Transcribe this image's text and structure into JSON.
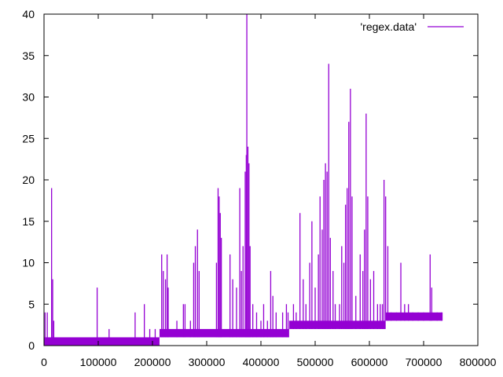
{
  "chart_data": {
    "type": "line",
    "title": "",
    "xlabel": "",
    "ylabel": "",
    "xlim": [
      0,
      800000
    ],
    "ylim": [
      0,
      40
    ],
    "x_ticks": [
      0,
      100000,
      200000,
      300000,
      400000,
      500000,
      600000,
      700000,
      800000
    ],
    "y_ticks": [
      0,
      5,
      10,
      15,
      20,
      25,
      30,
      35,
      40
    ],
    "x_tick_labels": [
      "0",
      "100000",
      "200000",
      "300000",
      "400000",
      "500000",
      "600000",
      "700000",
      "800000"
    ],
    "y_tick_labels": [
      "0",
      "5",
      "10",
      "15",
      "20",
      "25",
      "30",
      "35",
      "40"
    ],
    "grid": false,
    "legend_position": "top-right",
    "series": [
      {
        "name": "'regex.data'",
        "color": "#9400d3",
        "bands": [
          {
            "x_start": 0,
            "x_end": 213000,
            "low": 0,
            "high": 1
          },
          {
            "x_start": 213000,
            "x_end": 452000,
            "low": 1,
            "high": 2
          },
          {
            "x_start": 452000,
            "x_end": 630000,
            "low": 2,
            "high": 3
          },
          {
            "x_start": 630000,
            "x_end": 735000,
            "low": 3,
            "high": 4
          }
        ],
        "spikes": [
          [
            2000,
            4
          ],
          [
            6000,
            4
          ],
          [
            14000,
            19
          ],
          [
            16000,
            8
          ],
          [
            18000,
            3
          ],
          [
            98000,
            7
          ],
          [
            120000,
            2
          ],
          [
            168000,
            4
          ],
          [
            185000,
            5
          ],
          [
            195000,
            2
          ],
          [
            205000,
            2
          ],
          [
            217000,
            11
          ],
          [
            220000,
            9
          ],
          [
            224000,
            8
          ],
          [
            227000,
            11
          ],
          [
            229000,
            7
          ],
          [
            245000,
            3
          ],
          [
            257000,
            5
          ],
          [
            260000,
            5
          ],
          [
            270000,
            3
          ],
          [
            276000,
            10
          ],
          [
            279000,
            12
          ],
          [
            283000,
            14
          ],
          [
            286000,
            9
          ],
          [
            318000,
            10
          ],
          [
            321000,
            19
          ],
          [
            323000,
            18
          ],
          [
            325000,
            16
          ],
          [
            327000,
            13
          ],
          [
            343000,
            11
          ],
          [
            348000,
            8
          ],
          [
            355000,
            7
          ],
          [
            361000,
            19
          ],
          [
            364000,
            9
          ],
          [
            367000,
            12
          ],
          [
            371000,
            21
          ],
          [
            373000,
            23
          ],
          [
            374000,
            40
          ],
          [
            376000,
            24
          ],
          [
            378000,
            22
          ],
          [
            380000,
            12
          ],
          [
            385000,
            5
          ],
          [
            392000,
            4
          ],
          [
            400000,
            3
          ],
          [
            405000,
            5
          ],
          [
            412000,
            3
          ],
          [
            418000,
            9
          ],
          [
            422000,
            6
          ],
          [
            428000,
            4
          ],
          [
            440000,
            4
          ],
          [
            447000,
            5
          ],
          [
            450000,
            4
          ],
          [
            460000,
            5
          ],
          [
            465000,
            4
          ],
          [
            472000,
            16
          ],
          [
            478000,
            8
          ],
          [
            483000,
            5
          ],
          [
            490000,
            10
          ],
          [
            494000,
            15
          ],
          [
            500000,
            7
          ],
          [
            506000,
            11
          ],
          [
            509000,
            18
          ],
          [
            513000,
            14
          ],
          [
            516000,
            20
          ],
          [
            519000,
            22
          ],
          [
            522000,
            21
          ],
          [
            525000,
            34
          ],
          [
            528000,
            13
          ],
          [
            533000,
            9
          ],
          [
            537000,
            5
          ],
          [
            545000,
            5
          ],
          [
            549000,
            12
          ],
          [
            553000,
            10
          ],
          [
            556000,
            17
          ],
          [
            559000,
            19
          ],
          [
            562000,
            27
          ],
          [
            565000,
            31
          ],
          [
            568000,
            18
          ],
          [
            575000,
            6
          ],
          [
            583000,
            11
          ],
          [
            588000,
            9
          ],
          [
            591000,
            14
          ],
          [
            594000,
            28
          ],
          [
            597000,
            18
          ],
          [
            602000,
            8
          ],
          [
            608000,
            9
          ],
          [
            615000,
            5
          ],
          [
            620000,
            5
          ],
          [
            624000,
            5
          ],
          [
            627000,
            20
          ],
          [
            630000,
            18
          ],
          [
            634000,
            12
          ],
          [
            640000,
            4
          ],
          [
            650000,
            4
          ],
          [
            658000,
            10
          ],
          [
            665000,
            5
          ],
          [
            672000,
            5
          ],
          [
            680000,
            4
          ],
          [
            690000,
            4
          ],
          [
            700000,
            4
          ],
          [
            712000,
            11
          ],
          [
            715000,
            7
          ],
          [
            725000,
            4
          ],
          [
            733000,
            4
          ]
        ]
      }
    ]
  }
}
